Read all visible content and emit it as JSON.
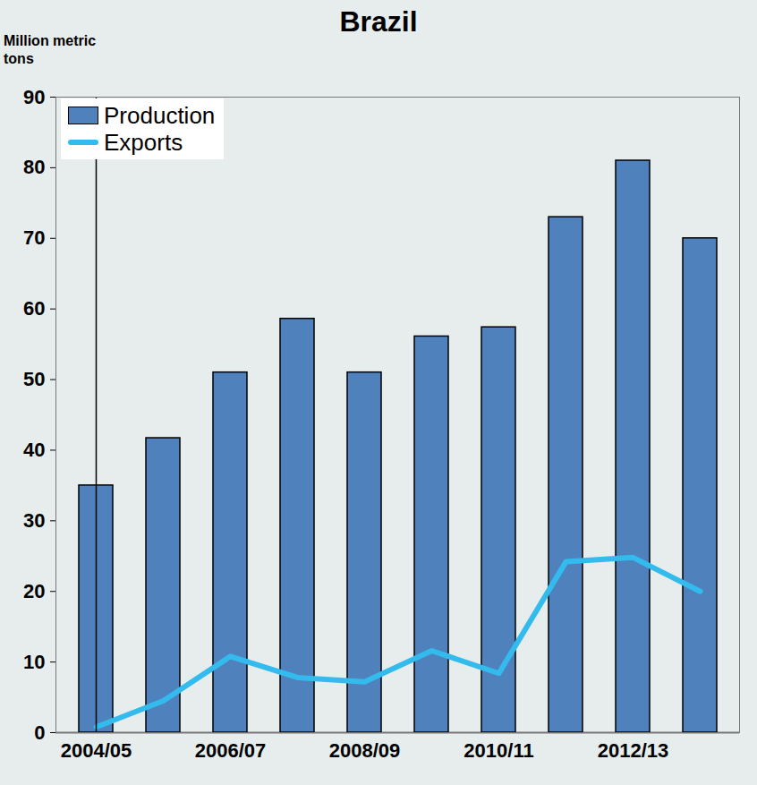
{
  "chart_data": {
    "type": "bar",
    "title": "Brazil",
    "y_label": "Million metric tons",
    "categories": [
      "2004/05",
      null,
      "2006/07",
      null,
      "2008/09",
      null,
      "2010/11",
      null,
      "2012/13",
      null
    ],
    "series": [
      {
        "name": "Production",
        "type": "bar",
        "color": "#4f81bd",
        "values": [
          35,
          41.7,
          51,
          58.6,
          51,
          56.1,
          57.4,
          73,
          81,
          70
        ]
      },
      {
        "name": "Exports",
        "type": "line",
        "color": "#33bbee",
        "values": [
          0.8,
          4.5,
          10.8,
          7.8,
          7.2,
          11.6,
          8.4,
          24.2,
          24.8,
          20
        ]
      }
    ],
    "ylim": [
      0,
      90
    ],
    "yticks": [
      0,
      10,
      20,
      30,
      40,
      50,
      60,
      70,
      80,
      90
    ],
    "legend": "top-left",
    "grid": false
  }
}
